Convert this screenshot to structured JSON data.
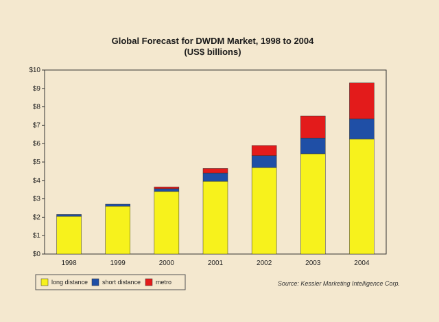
{
  "chart_data": {
    "type": "bar",
    "stacked": true,
    "title": "Global Forecast for DWDM Market, 1998 to 2004",
    "subtitle": "(US$ billions)",
    "categories": [
      "1998",
      "1999",
      "2000",
      "2001",
      "2002",
      "2003",
      "2004"
    ],
    "series": [
      {
        "name": "long distance",
        "color": "#f7f21c",
        "values": [
          2.05,
          2.6,
          3.4,
          3.95,
          4.7,
          5.45,
          6.25
        ]
      },
      {
        "name": "short distance",
        "color": "#1f4fa6",
        "values": [
          0.1,
          0.12,
          0.15,
          0.45,
          0.65,
          0.85,
          1.1
        ]
      },
      {
        "name": "metro",
        "color": "#e31b1b",
        "values": [
          0.0,
          0.0,
          0.1,
          0.25,
          0.55,
          1.2,
          1.95
        ]
      }
    ],
    "yticks": [
      "$0",
      "$1",
      "$2",
      "$3",
      "$4",
      "$5",
      "$6",
      "$7",
      "$8",
      "$9",
      "$10"
    ],
    "ylim": [
      0,
      10
    ],
    "grid": false,
    "legend": "bottom-left",
    "source": "Source: Kessler Marketing Intelligence Corp."
  }
}
